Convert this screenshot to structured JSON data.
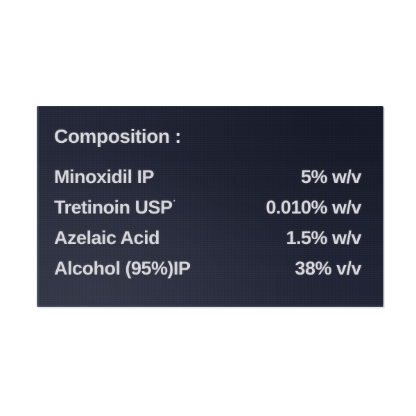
{
  "page": {
    "background_color": "#ffffff"
  },
  "label_panel": {
    "heading": "Composition :",
    "rows": [
      {
        "label": "Minoxidil IP",
        "value": "5% w/v"
      },
      {
        "label": "Tretinoin USP",
        "label_mark": "·",
        "value": "0.010% w/v"
      },
      {
        "label": "Azelaic Acid",
        "value": "1.5% w/v"
      },
      {
        "label": "Alcohol (95%)IP",
        "value": "38% v/v"
      }
    ],
    "colors": {
      "panel_bg_light": "#2a2e3f",
      "panel_bg_dark": "#1b1f31",
      "text": "#d8d9de"
    }
  }
}
